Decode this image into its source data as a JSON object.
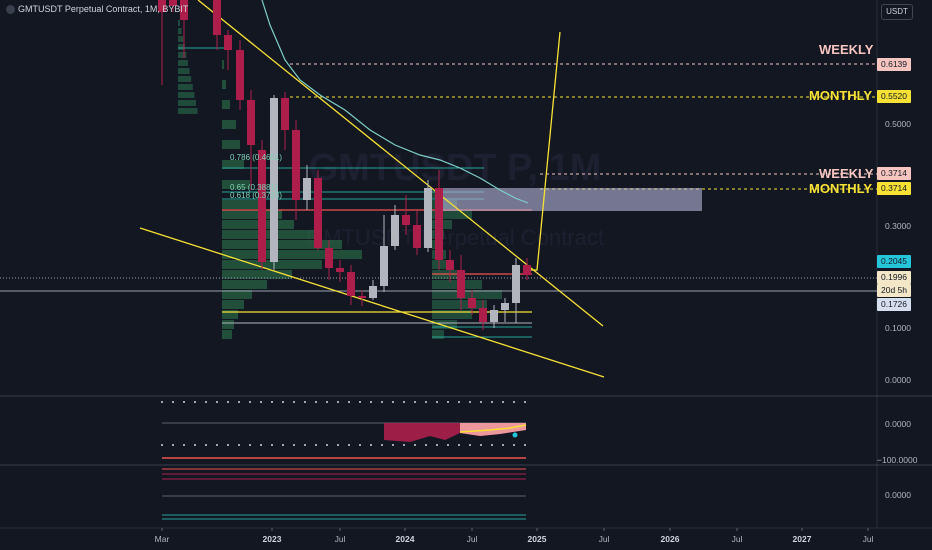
{
  "header": {
    "title": "GMTUSDT Perpetual Contract, 1M, BYBIT"
  },
  "watermark": {
    "symbol": "GMTUSDT P, 1M",
    "name": "GMTUSDT Perpetual Contract"
  },
  "price_scale": {
    "unit": "USDT",
    "labels": [
      "0.5000",
      "0.3000",
      "0.1000",
      "0.0000"
    ],
    "tags": [
      {
        "text": "0.6139",
        "color": "#f6c5c0",
        "text_color": "#131722"
      },
      {
        "text": "0.5520",
        "color": "#f7e135",
        "text_color": "#131722"
      },
      {
        "text": "0.3714",
        "color": "#f6c5c0",
        "text_color": "#131722"
      },
      {
        "text": "0.3714",
        "color": "#f7e135",
        "text_color": "#131722"
      },
      {
        "text": "0.2045",
        "color": "#26c6da",
        "text_color": "#131722"
      },
      {
        "text": "0.1996",
        "color": "#f3e7c7",
        "text_color": "#131722"
      },
      {
        "text": "20d 5h",
        "color": "#f3e7c7",
        "text_color": "#131722"
      },
      {
        "text": "0.1726",
        "color": "#d6dff0",
        "text_color": "#131722"
      }
    ]
  },
  "indicator_scale": {
    "labels": [
      "0.0000",
      "−100.0000",
      "0.0000"
    ]
  },
  "time_axis": {
    "labels": [
      {
        "text": "Mar",
        "bold": false
      },
      {
        "text": "2023",
        "bold": true
      },
      {
        "text": "Jul",
        "bold": false
      },
      {
        "text": "2024",
        "bold": true
      },
      {
        "text": "Jul",
        "bold": false
      },
      {
        "text": "2025",
        "bold": true
      },
      {
        "text": "Jul",
        "bold": false
      },
      {
        "text": "2026",
        "bold": true
      },
      {
        "text": "Jul",
        "bold": false
      },
      {
        "text": "2027",
        "bold": true
      },
      {
        "text": "Jul",
        "bold": false
      }
    ]
  },
  "levels": [
    {
      "text": "WEEKLY",
      "color": "#f6c5c0"
    },
    {
      "text": "MONTHLY",
      "color": "#f7e135"
    },
    {
      "text": "WEEKLY",
      "color": "#f6c5c0"
    },
    {
      "text": "MONTHLY",
      "color": "#f7e135"
    }
  ],
  "fib_labels": [
    {
      "text": "0.786 (0.4601)"
    },
    {
      "text": "0.65 (0.3881)"
    },
    {
      "text": "0.618 (0.3723)"
    }
  ],
  "colors": {
    "background": "#131722",
    "up": "#b2b5be",
    "down": "#ad1f4a",
    "ma": "#7ed0c9",
    "trendline": "#f7e135",
    "volume_profile": "#2e7d4f"
  }
}
